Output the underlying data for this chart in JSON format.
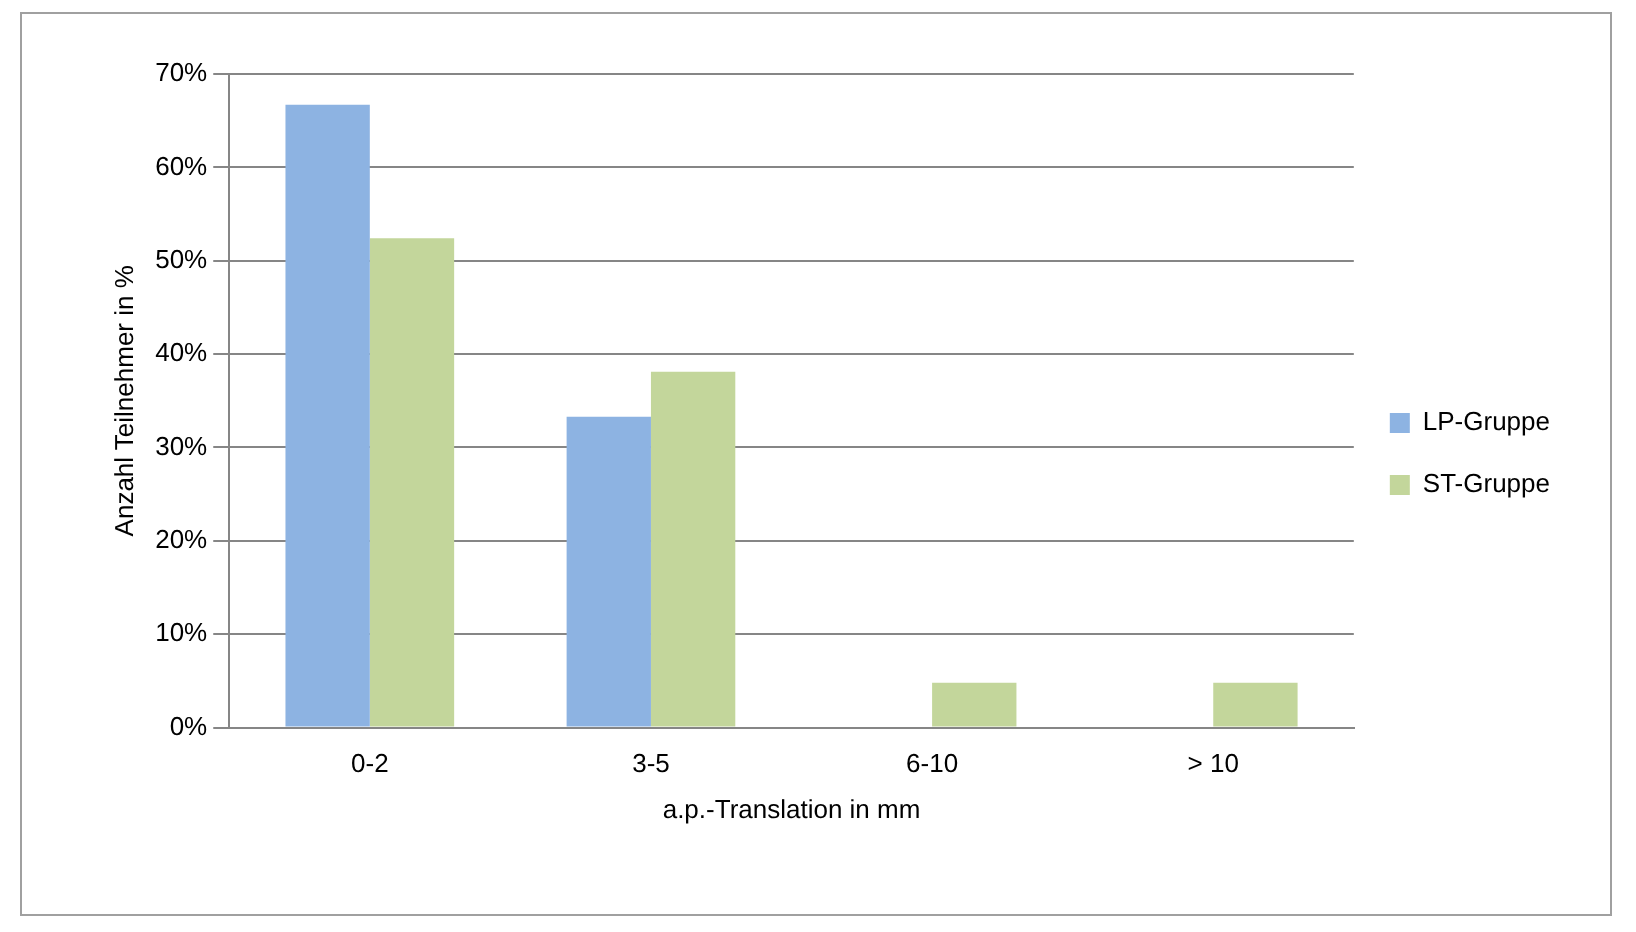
{
  "chart_data": {
    "type": "bar",
    "xlabel": "a.p.-Translation in mm",
    "ylabel": "Anzahl Teilnehmer in %",
    "categories": [
      "0-2",
      "3-5",
      "6-10",
      "> 10"
    ],
    "series": [
      {
        "name": "LP-Gruppe",
        "color": "#8db3e2",
        "values": [
          66.7,
          33.3,
          0,
          0
        ]
      },
      {
        "name": "ST-Gruppe",
        "color": "#c3d69b",
        "values": [
          52.4,
          38.1,
          4.8,
          4.8
        ]
      }
    ],
    "ylim": [
      0,
      70
    ],
    "yticks": [
      {
        "value": 0,
        "label": "0%"
      },
      {
        "value": 10,
        "label": "10%"
      },
      {
        "value": 20,
        "label": "20%"
      },
      {
        "value": 30,
        "label": "30%"
      },
      {
        "value": 40,
        "label": "40%"
      },
      {
        "value": 50,
        "label": "50%"
      },
      {
        "value": 60,
        "label": "60%"
      },
      {
        "value": 70,
        "label": "70%"
      }
    ],
    "grid": "y",
    "legend": "right"
  }
}
